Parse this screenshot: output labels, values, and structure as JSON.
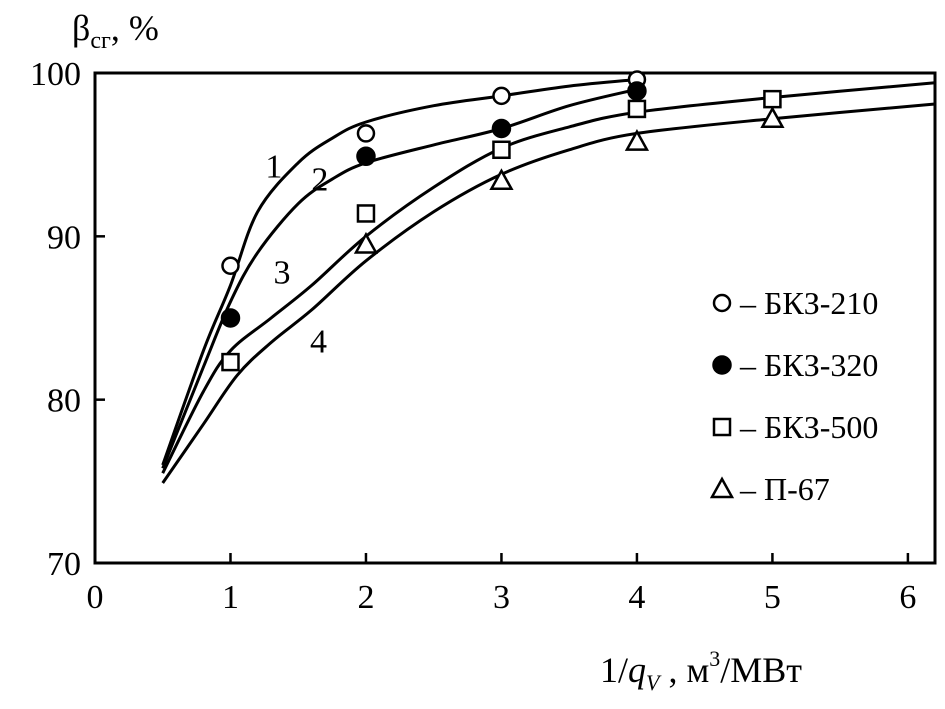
{
  "chart_data": {
    "type": "scatter",
    "ylabel_main": "β",
    "ylabel_sub": "сг",
    "ylabel_suffix": ", %",
    "xlabel_lead": "1/",
    "xlabel_var": "q",
    "xlabel_var_sub": "V",
    "xlabel_unit_pre": " , м",
    "xlabel_unit_exp": "3",
    "xlabel_unit_post": "/МВт",
    "xlim": [
      0,
      6.2
    ],
    "ylim": [
      70,
      100
    ],
    "x_ticks": [
      0,
      1,
      2,
      3,
      4,
      5,
      6
    ],
    "y_ticks": [
      70,
      80,
      90,
      100
    ],
    "grid": false,
    "legend_position": "right",
    "series": [
      {
        "name": "БКЗ-210",
        "marker": "circle-open",
        "x": [
          1,
          2,
          3,
          4
        ],
        "y": [
          88.2,
          96.3,
          98.6,
          99.6
        ]
      },
      {
        "name": "БКЗ-320",
        "marker": "circle-filled",
        "x": [
          1,
          2,
          3,
          4
        ],
        "y": [
          85.0,
          94.9,
          96.6,
          98.9
        ]
      },
      {
        "name": "БКЗ-500",
        "marker": "square-open",
        "x": [
          1,
          2,
          3,
          4,
          5
        ],
        "y": [
          82.3,
          91.4,
          95.3,
          97.8,
          98.4
        ]
      },
      {
        "name": "П-67",
        "marker": "triangle-open",
        "x": [
          2,
          3,
          4,
          5
        ],
        "y": [
          89.5,
          93.4,
          95.8,
          97.2
        ]
      }
    ],
    "curves": [
      {
        "label": "1",
        "x": [
          0.5,
          0.8,
          1.0,
          1.2,
          1.5,
          1.75,
          2.0,
          2.5,
          3.0,
          3.5,
          4.0
        ],
        "y": [
          76.0,
          83.0,
          87.0,
          91.5,
          94.5,
          96.0,
          97.0,
          98.0,
          98.6,
          99.2,
          99.6
        ]
      },
      {
        "label": "2",
        "x": [
          0.5,
          0.8,
          1.0,
          1.2,
          1.5,
          1.75,
          2.0,
          2.5,
          3.0,
          3.5,
          4.0
        ],
        "y": [
          75.8,
          82.0,
          86.0,
          89.0,
          92.0,
          93.5,
          94.5,
          95.6,
          96.6,
          98.0,
          99.0
        ]
      },
      {
        "label": "3",
        "x": [
          0.5,
          0.8,
          1.0,
          1.3,
          1.6,
          2.0,
          2.5,
          3.0,
          3.5,
          4.0,
          5.0,
          6.2
        ],
        "y": [
          75.5,
          80.5,
          83.0,
          85.0,
          87.0,
          90.0,
          93.0,
          95.4,
          96.7,
          97.6,
          98.5,
          99.4
        ]
      },
      {
        "label": "4",
        "x": [
          0.5,
          0.8,
          1.05,
          1.3,
          1.6,
          2.0,
          2.5,
          3.0,
          3.5,
          4.0,
          5.0,
          6.2
        ],
        "y": [
          74.9,
          78.5,
          81.5,
          83.5,
          85.5,
          88.5,
          91.5,
          93.8,
          95.3,
          96.3,
          97.2,
          98.1
        ]
      }
    ],
    "curve_labels": [
      {
        "text": "1",
        "x": 1.32,
        "y": 93.6
      },
      {
        "text": "2",
        "x": 1.66,
        "y": 92.8
      },
      {
        "text": "3",
        "x": 1.38,
        "y": 87.1
      },
      {
        "text": "4",
        "x": 1.65,
        "y": 82.9
      }
    ],
    "legend_dash": "–"
  }
}
